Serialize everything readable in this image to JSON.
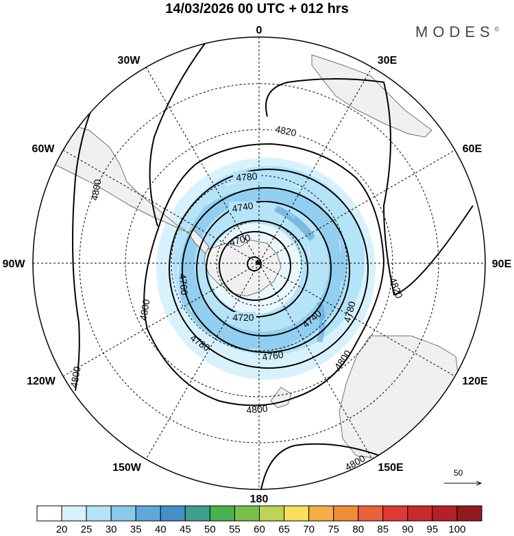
{
  "title": "14/03/2026  00 UTC  + 012 hrs",
  "brand": "MODES",
  "brand_mark": "©",
  "map": {
    "projection": "south-polar-stereographic",
    "longitude_labels": {
      "top": "0",
      "top_left": "30W",
      "top_right": "30E",
      "upper_left": "60W",
      "upper_right": "60E",
      "left": "90W",
      "right": "90E",
      "lower_left": "120W",
      "lower_right": "120E",
      "bottom_left": "150W",
      "bottom_right": "150E",
      "bottom": "180"
    },
    "contour_labels": {
      "c4820_top": "4820",
      "c4820_right": "4820",
      "c4800_left_a": "4800",
      "c4800_left_b": "4800",
      "c4800_lower_left": "4800",
      "c4800_bottom": "4800",
      "c4800_right": "4800",
      "c4800_bottom_right": "4800",
      "c4780_top": "4780",
      "c4780_right": "4780",
      "c4780_bottom": "4780",
      "c4760_left": "4760",
      "c4760_bottom": "4760",
      "c4740_top": "4740",
      "c4740_right": "4740",
      "c4720_bottom": "4720",
      "c4700_top": "4700"
    },
    "contour_color": "#000000",
    "grid_color": "#000000",
    "land_color": "#f0f0f0",
    "coast_color": "#707070"
  },
  "reference_vector": {
    "label": "50"
  },
  "colorbar": {
    "ticks": [
      "20",
      "25",
      "30",
      "35",
      "40",
      "45",
      "50",
      "55",
      "60",
      "65",
      "70",
      "75",
      "80",
      "85",
      "90",
      "95",
      "100"
    ],
    "colors": [
      "#ffffff",
      "#d8f2fd",
      "#b5e3f8",
      "#8ac8ec",
      "#5fa8d9",
      "#4490c6",
      "#3f9f8e",
      "#4ab152",
      "#78c04c",
      "#bbd554",
      "#f7e05a",
      "#f5ad4a",
      "#ef8c3a",
      "#e8613a",
      "#dd3a33",
      "#c82a2a",
      "#b52028",
      "#901a1e"
    ]
  }
}
